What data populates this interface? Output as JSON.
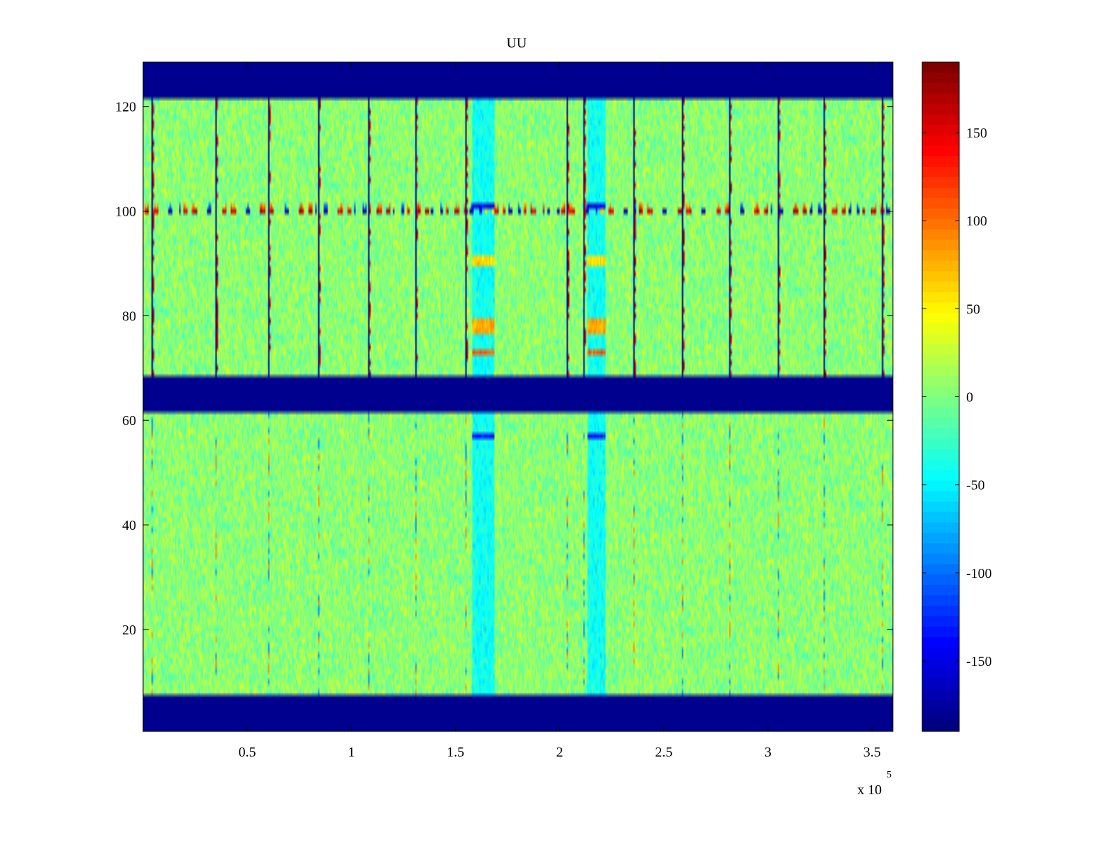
{
  "chart_data": {
    "type": "heatmap",
    "title": "UU",
    "xlabel": "",
    "ylabel": "",
    "x_range": [
      0,
      3.6
    ],
    "x_exponent_label": "x 10",
    "x_exponent_power": "5",
    "x_ticks": [
      0.5,
      1,
      1.5,
      2,
      2.5,
      3,
      3.5
    ],
    "x_tick_labels": [
      "0.5",
      "1",
      "1.5",
      "2",
      "2.5",
      "3",
      "3.5"
    ],
    "y_range": [
      0.5,
      128.5
    ],
    "y_ticks": [
      20,
      40,
      60,
      80,
      100,
      120
    ],
    "y_tick_labels": [
      "20",
      "40",
      "60",
      "80",
      "100",
      "120"
    ],
    "color_range": [
      -190,
      190
    ],
    "colormap": "jet",
    "colorbar_ticks": [
      150,
      100,
      50,
      0,
      -50,
      -100,
      -150
    ],
    "colorbar_tick_labels": [
      "150",
      "100",
      "50",
      "0",
      "-50",
      "-100",
      "-150"
    ],
    "masked_rows": [
      [
        1,
        7
      ],
      [
        62,
        68
      ],
      [
        122,
        128
      ]
    ],
    "mask_color": "#00008f",
    "noise_rows": [
      [
        8,
        61
      ],
      [
        69,
        121
      ]
    ],
    "noise_level": 15,
    "blue_lines_x": [
      0.04,
      0.35,
      0.6,
      0.84,
      1.08,
      1.31,
      1.55,
      2.04,
      2.12,
      2.36,
      2.59,
      2.82,
      3.05,
      3.27,
      3.55
    ],
    "blue_line_rows": [
      69,
      121
    ],
    "feature_bands": [
      {
        "x": [
          1.58,
          1.68
        ],
        "row": 101,
        "value": -150
      },
      {
        "x": [
          2.14,
          2.22
        ],
        "row": 101,
        "value": -150
      },
      {
        "x": [
          1.58,
          1.68
        ],
        "row": [
          90,
          91
        ],
        "value": 60
      },
      {
        "x": [
          2.14,
          2.22
        ],
        "row": [
          90,
          91
        ],
        "value": 60
      },
      {
        "x": [
          1.58,
          1.68
        ],
        "row": [
          77,
          79
        ],
        "value": 80
      },
      {
        "x": [
          2.14,
          2.22
        ],
        "row": [
          77,
          79
        ],
        "value": 80
      },
      {
        "x": [
          1.58,
          1.68
        ],
        "row": 73,
        "value": 110
      },
      {
        "x": [
          2.14,
          2.22
        ],
        "row": 73,
        "value": 110
      },
      {
        "x": [
          1.58,
          1.68
        ],
        "row": 57,
        "value": -140
      },
      {
        "x": [
          2.14,
          2.22
        ],
        "row": 57,
        "value": -140
      }
    ],
    "hot_row": 100
  }
}
